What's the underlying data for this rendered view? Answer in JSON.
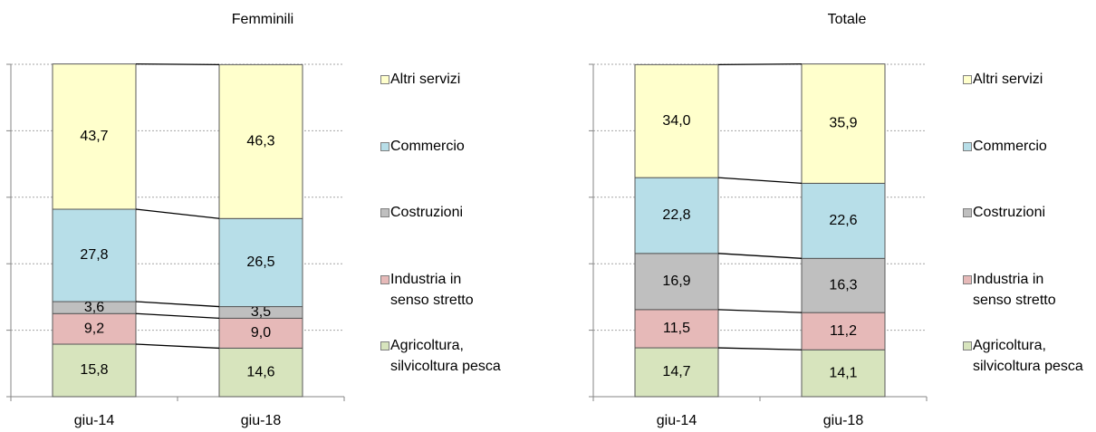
{
  "chart_data": [
    {
      "type": "bar",
      "stacked": true,
      "title": "Femminili",
      "categories": [
        "giu-14",
        "giu-18"
      ],
      "series": [
        {
          "name": "Agricoltura, silvicoltura pesca",
          "color": "#d7e4bd",
          "values": [
            15.8,
            14.6
          ],
          "value_labels": [
            "15,8",
            "14,6"
          ]
        },
        {
          "name": "Industria in senso stretto",
          "color": "#e6b9b8",
          "values": [
            9.2,
            9.0
          ],
          "value_labels": [
            "9,2",
            "9,0"
          ]
        },
        {
          "name": "Costruzioni",
          "color": "#bfbfbf",
          "values": [
            3.6,
            3.5
          ],
          "value_labels": [
            "3,6",
            "3,5"
          ]
        },
        {
          "name": "Commercio",
          "color": "#b7dee8",
          "values": [
            27.8,
            26.5
          ],
          "value_labels": [
            "27,8",
            "26,5"
          ]
        },
        {
          "name": "Altri servizi",
          "color": "#ffffcc",
          "values": [
            43.7,
            46.3
          ],
          "value_labels": [
            "43,7",
            "46,3"
          ]
        }
      ],
      "ylim": [
        0,
        100
      ],
      "yticks": [
        0,
        20,
        40,
        60,
        80,
        100
      ],
      "grid": true,
      "legend": "right"
    },
    {
      "type": "bar",
      "stacked": true,
      "title": "Totale",
      "categories": [
        "giu-14",
        "giu-18"
      ],
      "series": [
        {
          "name": "Agricoltura, silvicoltura pesca",
          "color": "#d7e4bd",
          "values": [
            14.7,
            14.1
          ],
          "value_labels": [
            "14,7",
            "14,1"
          ]
        },
        {
          "name": "Industria in senso stretto",
          "color": "#e6b9b8",
          "values": [
            11.5,
            11.2
          ],
          "value_labels": [
            "11,5",
            "11,2"
          ]
        },
        {
          "name": "Costruzioni",
          "color": "#bfbfbf",
          "values": [
            16.9,
            16.3
          ],
          "value_labels": [
            "16,9",
            "16,3"
          ]
        },
        {
          "name": "Commercio",
          "color": "#b7dee8",
          "values": [
            22.8,
            22.6
          ],
          "value_labels": [
            "22,8",
            "22,6"
          ]
        },
        {
          "name": "Altri servizi",
          "color": "#ffffcc",
          "values": [
            34.0,
            35.9
          ],
          "value_labels": [
            "34,0",
            "35,9"
          ]
        }
      ],
      "ylim": [
        0,
        100
      ],
      "yticks": [
        0,
        20,
        40,
        60,
        80,
        100
      ],
      "grid": true,
      "legend": "right"
    }
  ]
}
